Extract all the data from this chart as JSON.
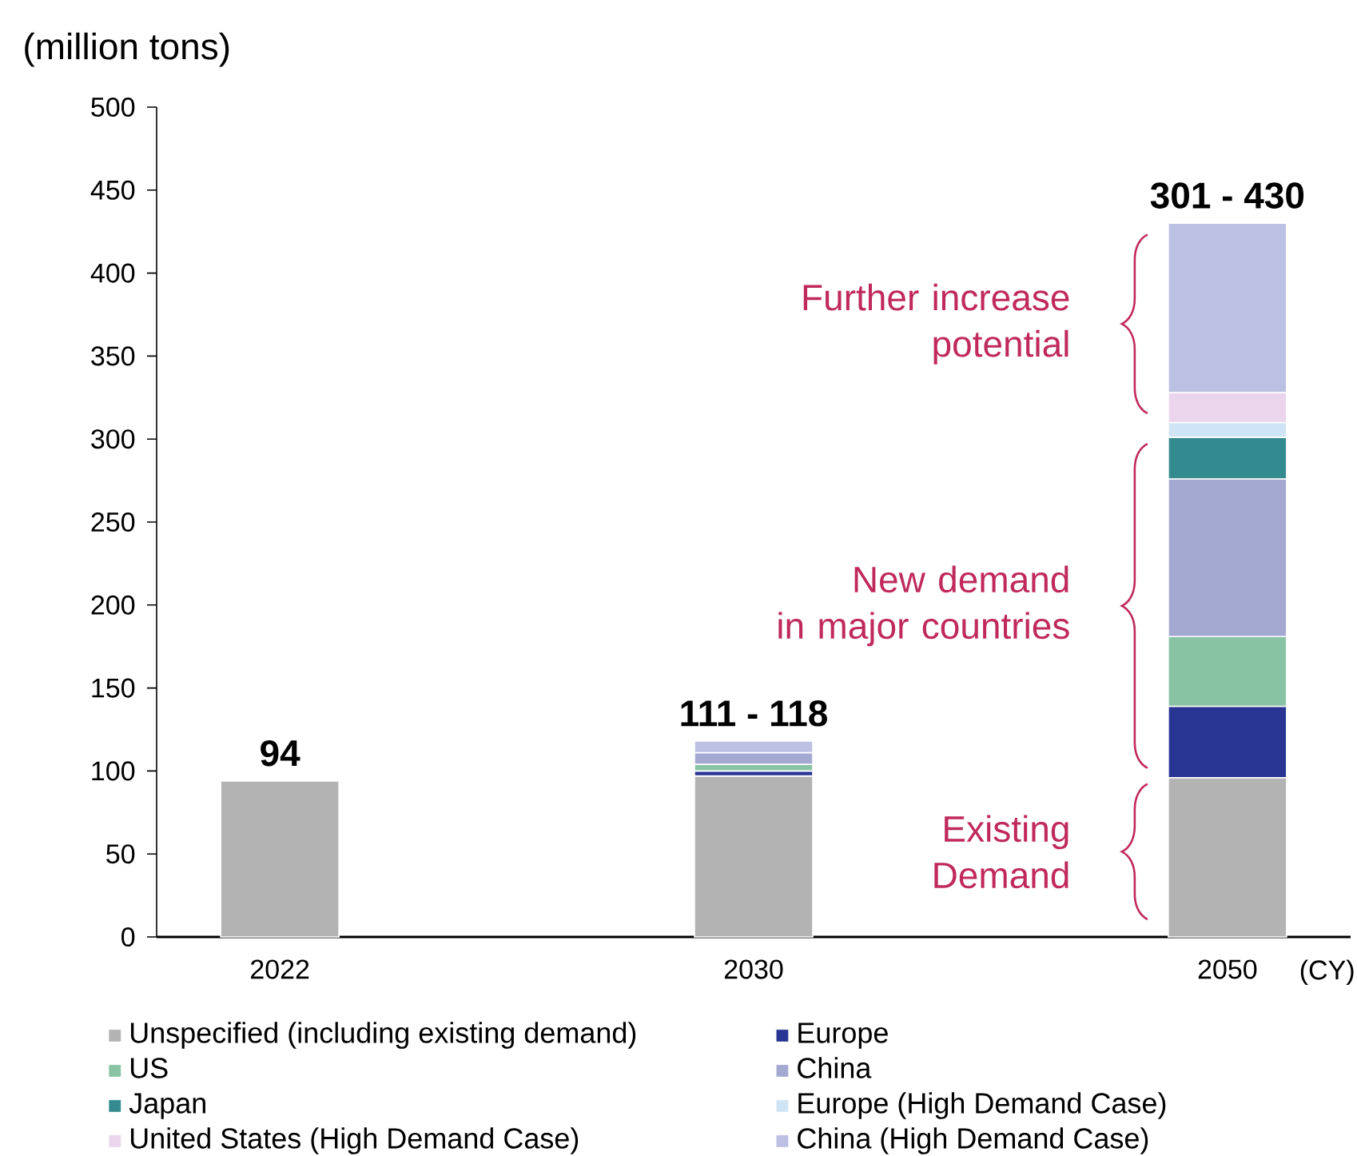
{
  "chart_data": {
    "type": "bar",
    "stacked": true,
    "ylabel": "(million tons)",
    "xlabel": "(CY)",
    "categories": [
      "2022",
      "2030",
      "2050"
    ],
    "series": [
      {
        "name": "Unspecified (including existing demand)",
        "color": "#b3b3b3",
        "values": [
          94,
          97,
          96
        ]
      },
      {
        "name": "Europe",
        "color": "#283593",
        "values": [
          null,
          3,
          43
        ]
      },
      {
        "name": "US",
        "color": "#88c4a4",
        "values": [
          null,
          4,
          42
        ]
      },
      {
        "name": "China",
        "color": "#a4a9d1",
        "values": [
          null,
          7,
          95
        ]
      },
      {
        "name": "Japan",
        "color": "#348b8f",
        "values": [
          null,
          null,
          25
        ]
      },
      {
        "name": "Europe (High Demand Case)",
        "color": "#cfe4f4",
        "values": [
          null,
          null,
          9
        ]
      },
      {
        "name": "United States (High Demand Case)",
        "color": "#ead5ed",
        "values": [
          null,
          null,
          18
        ]
      },
      {
        "name": "China (High Demand Case)",
        "color": "#bcc0e3",
        "values": [
          null,
          7,
          102
        ]
      }
    ],
    "ylim": [
      0,
      500
    ],
    "yticks": [
      0,
      50,
      100,
      150,
      200,
      250,
      300,
      350,
      400,
      450,
      500
    ],
    "totals": [
      "94",
      "111 - 118",
      "301 - 430"
    ],
    "legend": "bottom",
    "annotations": [
      "Further increase potential",
      "New demand in major countries",
      "Existing Demand"
    ]
  }
}
